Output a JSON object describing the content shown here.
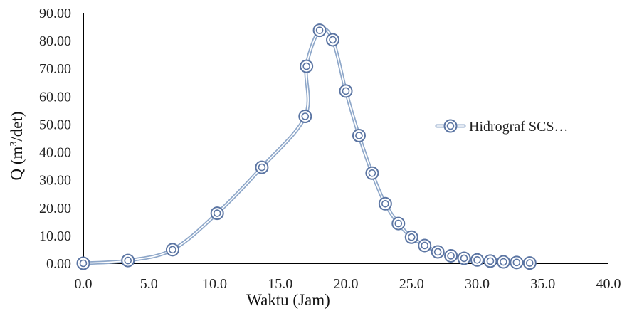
{
  "chart_data": {
    "type": "scatter",
    "title": "",
    "xlabel": "Waktu (Jam)",
    "ylabel_main": "Q (m",
    "ylabel_sup": "3",
    "ylabel_tail": "/det)",
    "xlim": [
      0,
      40
    ],
    "ylim": [
      0,
      90
    ],
    "x_ticks": [
      "0.0",
      "5.0",
      "10.0",
      "15.0",
      "20.0",
      "25.0",
      "30.0",
      "35.0",
      "40.0"
    ],
    "y_ticks": [
      "0.00",
      "10.00",
      "20.00",
      "30.00",
      "40.00",
      "50.00",
      "60.00",
      "70.00",
      "80.00",
      "90.00"
    ],
    "grid": false,
    "legend_position": "right",
    "series_style": "smooth line with circle markers",
    "color": "#8ea7c9",
    "marker_color": "#5b75a3",
    "series": [
      {
        "name": "Hidrograf SCS…",
        "x": [
          0,
          3.4,
          6.8,
          10.2,
          13.6,
          16.9,
          17.0,
          18.0,
          19.0,
          20.0,
          21.0,
          22.0,
          23.0,
          24.0,
          25.0,
          26.0,
          27.0,
          28.0,
          29.0,
          30.0,
          31.0,
          32.0,
          33.0,
          34.0
        ],
        "y": [
          0.0,
          1.0,
          4.9,
          18.0,
          34.5,
          52.8,
          70.8,
          83.7,
          80.3,
          61.9,
          45.9,
          32.4,
          21.4,
          14.3,
          9.4,
          6.4,
          4.1,
          2.7,
          1.8,
          1.2,
          0.8,
          0.5,
          0.3,
          0.1
        ]
      }
    ]
  }
}
